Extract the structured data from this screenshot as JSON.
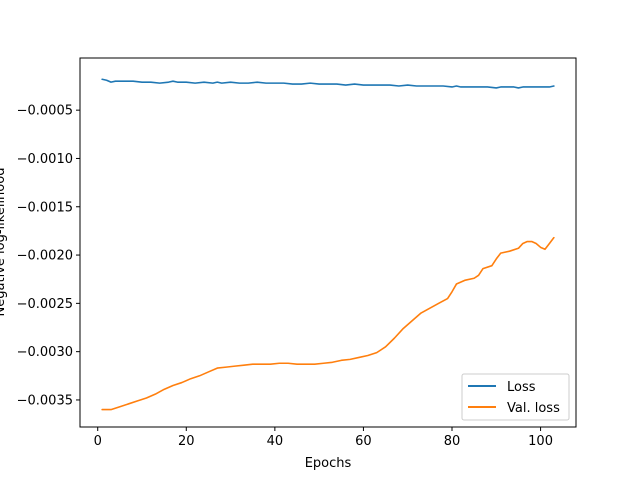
{
  "chart_data": {
    "type": "line",
    "xlabel": "Epochs",
    "ylabel": "Negative log-likelihood",
    "xlim": [
      -4,
      108
    ],
    "ylim": [
      -0.00378,
      4e-05
    ],
    "xticks": [
      0,
      20,
      40,
      60,
      80,
      100
    ],
    "xtick_labels": [
      "0",
      "20",
      "40",
      "60",
      "80",
      "100"
    ],
    "yticks": [
      -0.0035,
      -0.003,
      -0.0025,
      -0.002,
      -0.0015,
      -0.001,
      -0.0005
    ],
    "ytick_labels": [
      "−0.0035",
      "−0.0030",
      "−0.0025",
      "−0.0020",
      "−0.0015",
      "−0.0010",
      "−0.0005"
    ],
    "legend_position": "lower-right",
    "grid": false,
    "series": [
      {
        "name": "Loss",
        "color": "#1f77b4",
        "x": [
          1,
          2,
          3,
          4,
          5,
          6,
          8,
          10,
          12,
          14,
          16,
          17,
          18,
          20,
          22,
          24,
          26,
          27,
          28,
          30,
          32,
          34,
          36,
          38,
          40,
          42,
          44,
          46,
          48,
          50,
          52,
          54,
          56,
          58,
          60,
          62,
          64,
          66,
          68,
          70,
          72,
          74,
          76,
          78,
          80,
          81,
          82,
          84,
          86,
          88,
          90,
          91,
          92,
          94,
          95,
          96,
          98,
          100,
          102,
          103
        ],
        "y": [
          -0.00018,
          -0.00019,
          -0.00021,
          -0.0002,
          -0.0002,
          -0.0002,
          -0.0002,
          -0.00021,
          -0.00021,
          -0.00022,
          -0.00021,
          -0.0002,
          -0.00021,
          -0.00021,
          -0.00022,
          -0.00021,
          -0.00022,
          -0.00021,
          -0.00022,
          -0.00021,
          -0.00022,
          -0.00022,
          -0.00021,
          -0.00022,
          -0.00022,
          -0.00022,
          -0.00023,
          -0.00023,
          -0.00022,
          -0.00023,
          -0.00023,
          -0.00023,
          -0.00024,
          -0.00023,
          -0.00024,
          -0.00024,
          -0.00024,
          -0.00024,
          -0.00025,
          -0.00024,
          -0.00025,
          -0.00025,
          -0.00025,
          -0.00025,
          -0.00026,
          -0.00025,
          -0.00026,
          -0.00026,
          -0.00026,
          -0.00026,
          -0.00027,
          -0.00026,
          -0.00026,
          -0.00026,
          -0.00027,
          -0.00026,
          -0.00026,
          -0.00026,
          -0.00026,
          -0.00025
        ]
      },
      {
        "name": "Val. loss",
        "color": "#ff7f0e",
        "x": [
          1,
          2,
          3,
          5,
          7,
          9,
          11,
          13,
          15,
          17,
          19,
          21,
          23,
          25,
          27,
          29,
          31,
          33,
          35,
          37,
          39,
          41,
          43,
          45,
          47,
          49,
          51,
          53,
          55,
          57,
          59,
          61,
          63,
          65,
          67,
          69,
          71,
          73,
          75,
          77,
          79,
          80,
          81,
          83,
          85,
          86,
          87,
          89,
          90,
          91,
          93,
          95,
          96,
          97,
          98,
          99,
          100,
          101,
          102,
          103
        ],
        "y": [
          -0.0036,
          -0.0036,
          -0.0036,
          -0.00357,
          -0.00354,
          -0.00351,
          -0.00348,
          -0.00344,
          -0.00339,
          -0.00335,
          -0.00332,
          -0.00328,
          -0.00325,
          -0.00321,
          -0.00317,
          -0.00316,
          -0.00315,
          -0.00314,
          -0.00313,
          -0.00313,
          -0.00313,
          -0.00312,
          -0.00312,
          -0.00313,
          -0.00313,
          -0.00313,
          -0.00312,
          -0.00311,
          -0.00309,
          -0.00308,
          -0.00306,
          -0.00304,
          -0.00301,
          -0.00295,
          -0.00286,
          -0.00276,
          -0.00268,
          -0.0026,
          -0.00255,
          -0.0025,
          -0.00245,
          -0.00238,
          -0.0023,
          -0.00226,
          -0.00224,
          -0.00221,
          -0.00214,
          -0.00211,
          -0.00204,
          -0.00198,
          -0.00196,
          -0.00193,
          -0.00188,
          -0.00186,
          -0.00186,
          -0.00188,
          -0.00192,
          -0.00194,
          -0.00188,
          -0.00182
        ]
      }
    ]
  }
}
